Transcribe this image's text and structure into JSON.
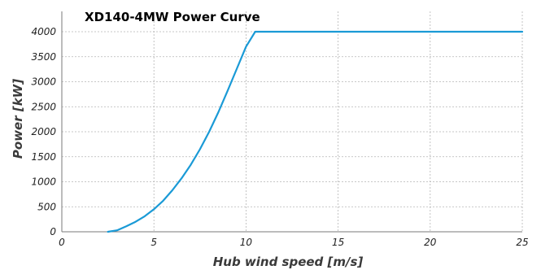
{
  "chart_data": {
    "type": "line",
    "title": "XD140-4MW Power Curve",
    "xlabel": "Hub wind speed [m/s]",
    "ylabel": "Power [kW]",
    "xlim": [
      0,
      25
    ],
    "ylim": [
      0,
      4000
    ],
    "xticks": [
      0,
      5,
      10,
      15,
      20,
      25
    ],
    "yticks": [
      0,
      500,
      1000,
      1500,
      2000,
      2500,
      3000,
      3500,
      4000
    ],
    "grid": true,
    "line_color": "#1a9ad6",
    "series": [
      {
        "x": [
          2.5,
          3,
          3.5,
          4,
          4.5,
          5,
          5.5,
          6,
          6.5,
          7,
          7.5,
          8,
          8.5,
          9,
          9.5,
          10,
          10.5,
          11,
          12,
          13,
          14,
          15,
          16,
          17,
          18,
          19,
          20,
          21,
          22,
          23,
          24,
          25
        ],
        "values": [
          0,
          30,
          110,
          200,
          310,
          450,
          620,
          830,
          1070,
          1340,
          1650,
          2000,
          2390,
          2820,
          3260,
          3700,
          4000,
          4000,
          4000,
          4000,
          4000,
          4000,
          4000,
          4000,
          4000,
          4000,
          4000,
          4000,
          4000,
          4000,
          4000,
          4000
        ]
      }
    ]
  }
}
